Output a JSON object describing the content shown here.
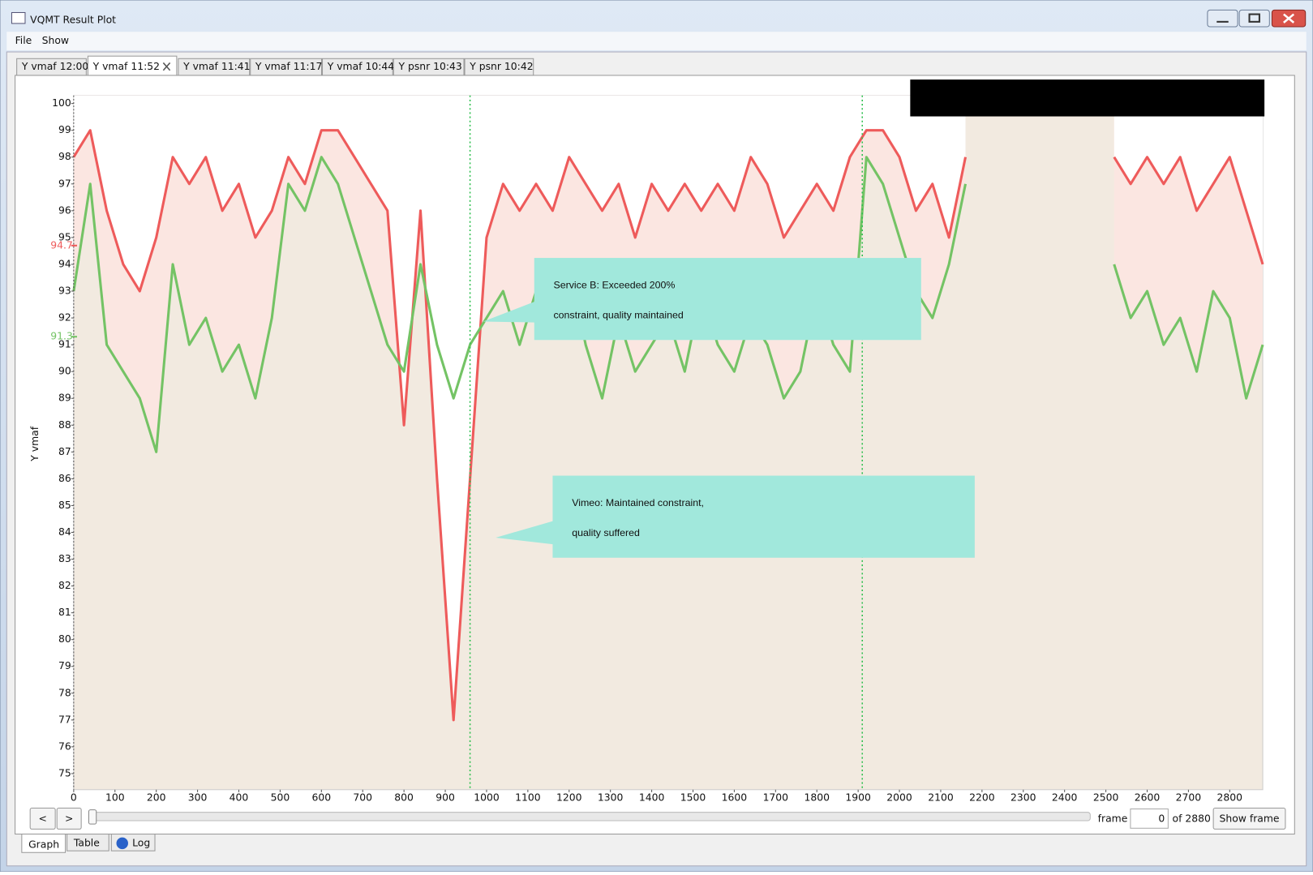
{
  "window": {
    "title": "VQMT Result Plot"
  },
  "menu": [
    "File",
    "Show"
  ],
  "tabs": [
    "Y vmaf 12:00",
    "Y vmaf 11:52",
    "Y vmaf 11:41",
    "Y vmaf 11:17",
    "Y vmaf 10:44",
    "Y psnr 10:43",
    "Y psnr 10:42"
  ],
  "active_tab": 1,
  "chart_data": {
    "type": "line",
    "ylabel": "Y vmaf",
    "x": [
      0,
      40,
      80,
      120,
      160,
      200,
      240,
      280,
      320,
      360,
      400,
      440,
      480,
      520,
      560,
      600,
      640,
      680,
      720,
      760,
      800,
      840,
      880,
      920,
      960,
      1000,
      1040,
      1080,
      1120,
      1160,
      1200,
      1240,
      1280,
      1320,
      1360,
      1400,
      1440,
      1480,
      1520,
      1560,
      1600,
      1640,
      1680,
      1720,
      1760,
      1800,
      1840,
      1880,
      1920,
      1960,
      2000,
      2040,
      2080,
      2120,
      2160,
      2200,
      2240,
      2280,
      2320,
      2360,
      2400,
      2440,
      2480,
      2520,
      2560,
      2600,
      2640,
      2680,
      2720,
      2760,
      2800,
      2840,
      2880
    ],
    "series": [
      {
        "color": "#ee5b5b",
        "mean": 94.7,
        "values": [
          98,
          99,
          96,
          94,
          93,
          95,
          98,
          97,
          98,
          96,
          97,
          95,
          96,
          98,
          97,
          99,
          99,
          98,
          97,
          96,
          88,
          96,
          86,
          77,
          86,
          95,
          97,
          96,
          97,
          96,
          98,
          97,
          96,
          97,
          95,
          97,
          96,
          97,
          96,
          97,
          96,
          98,
          97,
          95,
          96,
          97,
          96,
          98,
          99,
          99,
          98,
          96,
          97,
          95,
          98,
          null,
          null,
          null,
          null,
          null,
          null,
          null,
          null,
          98,
          97,
          98,
          97,
          98,
          96,
          97,
          98,
          96,
          94
        ]
      },
      {
        "color": "#74c365",
        "mean": 91.3,
        "values": [
          93,
          97,
          91,
          90,
          89,
          87,
          94,
          91,
          92,
          90,
          91,
          89,
          92,
          97,
          96,
          98,
          97,
          95,
          93,
          91,
          90,
          94,
          91,
          89,
          91,
          92,
          93,
          91,
          93,
          92,
          94,
          91,
          89,
          92,
          90,
          91,
          92,
          90,
          93,
          91,
          90,
          92,
          91,
          89,
          90,
          93,
          91,
          90,
          98,
          97,
          95,
          93,
          92,
          94,
          97,
          null,
          null,
          null,
          null,
          null,
          null,
          null,
          null,
          94,
          92,
          93,
          91,
          92,
          90,
          93,
          92,
          89,
          91
        ]
      }
    ],
    "markers_x": [
      960,
      1910
    ],
    "xlim": [
      0,
      2880
    ],
    "ylim": [
      74.4,
      100.3
    ],
    "xticks": [
      0,
      100,
      200,
      300,
      400,
      500,
      600,
      700,
      800,
      900,
      1000,
      1100,
      1200,
      1300,
      1400,
      1500,
      1600,
      1700,
      1800,
      1900,
      2000,
      2100,
      2200,
      2300,
      2400,
      2500,
      2600,
      2700,
      2800
    ],
    "yticks": [
      75,
      76,
      77,
      78,
      79,
      80,
      81,
      82,
      83,
      84,
      85,
      86,
      87,
      88,
      89,
      90,
      91,
      92,
      93,
      94,
      95,
      96,
      97,
      98,
      99,
      100
    ],
    "annotations": [
      {
        "lines": [
          "Service B: Exceeded 200%",
          "constraint, quality maintained"
        ]
      },
      {
        "lines": [
          "Vimeo: Maintained constraint,",
          "quality suffered"
        ]
      }
    ]
  },
  "controls": {
    "prev": "<",
    "next": ">",
    "frame_label": "frame",
    "frame": 0,
    "total_label": "of 2880",
    "show_button": "Show frame"
  },
  "bottom_tabs": [
    "Graph",
    "Table",
    "Log"
  ]
}
